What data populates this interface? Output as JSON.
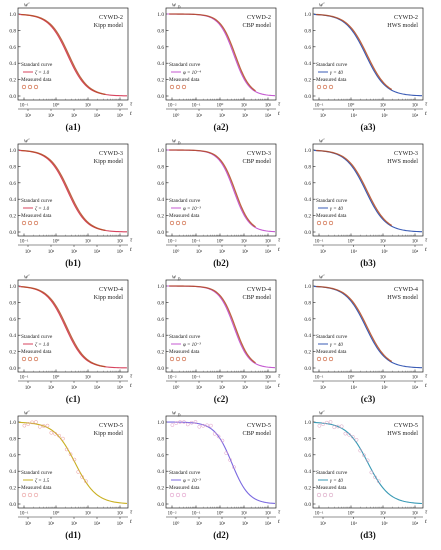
{
  "figure": {
    "panels": [
      {
        "id": "a1",
        "label": "(a1)",
        "title": "CYWD-2",
        "model": "Kipp model",
        "y_sym": "w'",
        "y_sub": "",
        "x_top": "τ",
        "x_bottom": "t",
        "ticks_top": [
          "10⁻¹",
          "10⁰",
          "10¹",
          "10²"
        ],
        "ticks_bottom": [
          "10¹",
          "10²",
          "10³",
          "10⁴",
          "10⁵"
        ],
        "legend": {
          "curve": "Standard curve",
          "param": "ζ = 1.0",
          "measured": "Measured data"
        },
        "curve_color": "#d7435e",
        "data_color": "#b34a22",
        "midpoint": 0.45,
        "slope": 1.9,
        "offset": 0.0,
        "tailMax": 0.8
      },
      {
        "id": "a2",
        "label": "(a2)",
        "title": "CYWD-2",
        "model": "CBP model",
        "y_sym": "w",
        "y_sub": "D",
        "x_top": "τ",
        "x_bottom": "t",
        "ticks_top": [
          "10⁻²",
          "10⁻¹",
          "10⁰",
          "10¹",
          "10²"
        ],
        "ticks_bottom": [
          "10⁰",
          "10¹",
          "10²",
          "10³",
          "10⁴"
        ],
        "legend": {
          "curve": "Standard curve",
          "param": "φ = 10⁻⁴",
          "measured": "Measured data"
        },
        "curve_color": "#c45ad0",
        "data_color": "#b34a22",
        "midpoint": 0.62,
        "slope": 2.4,
        "offset": 0.0,
        "tailMax": 0.82
      },
      {
        "id": "a3",
        "label": "(a3)",
        "title": "CYWD-2",
        "model": "HWS model",
        "y_sym": "w'",
        "y_sub": "",
        "x_top": "τ",
        "x_bottom": "t",
        "ticks_top": [
          "10⁻¹",
          "10⁰",
          "10¹",
          "10²"
        ],
        "ticks_bottom": [
          "10¹",
          "10²",
          "10³",
          "10⁴"
        ],
        "legend": {
          "curve": "Standard curve",
          "param": "γ = 40",
          "measured": "Measured data"
        },
        "curve_color": "#3a5bb5",
        "data_color": "#b34a22",
        "midpoint": 0.48,
        "slope": 1.8,
        "offset": 0.0,
        "tailMax": 0.72
      },
      {
        "id": "b1",
        "label": "(b1)",
        "title": "CYWD-3",
        "model": "Kipp model",
        "y_sym": "w'",
        "y_sub": "",
        "x_top": "τ",
        "x_bottom": "t",
        "ticks_top": [
          "10⁻¹",
          "10⁰",
          "10¹",
          "10²"
        ],
        "ticks_bottom": [
          "10¹",
          "10²",
          "10³",
          "10⁴",
          "10⁵"
        ],
        "legend": {
          "curve": "Standard curve",
          "param": "ζ = 1.0",
          "measured": "Measured data"
        },
        "curve_color": "#d7435e",
        "data_color": "#b34a22",
        "midpoint": 0.45,
        "slope": 1.9,
        "offset": 0.0,
        "tailMax": 0.8
      },
      {
        "id": "b2",
        "label": "(b2)",
        "title": "CYWD-3",
        "model": "CBP model",
        "y_sym": "w",
        "y_sub": "D",
        "x_top": "τ",
        "x_bottom": "t",
        "ticks_top": [
          "10⁻²",
          "10⁻¹",
          "10⁰",
          "10¹",
          "10²"
        ],
        "ticks_bottom": [
          "10⁰",
          "10¹",
          "10²",
          "10³",
          "10⁴"
        ],
        "legend": {
          "curve": "Standard curve",
          "param": "φ = 10⁻³",
          "measured": "Measured data"
        },
        "curve_color": "#c45ad0",
        "data_color": "#b34a22",
        "midpoint": 0.62,
        "slope": 2.4,
        "offset": 0.0,
        "tailMax": 0.82
      },
      {
        "id": "b3",
        "label": "(b3)",
        "title": "CYWD-3",
        "model": "HWS model",
        "y_sym": "w'",
        "y_sub": "",
        "x_top": "τ",
        "x_bottom": "t",
        "ticks_top": [
          "10⁻¹",
          "10⁰",
          "10¹",
          "10²"
        ],
        "ticks_bottom": [
          "10¹",
          "10²",
          "10³",
          "10⁴"
        ],
        "legend": {
          "curve": "Standard curve",
          "param": "γ = 40",
          "measured": "Measured data"
        },
        "curve_color": "#3a5bb5",
        "data_color": "#b34a22",
        "midpoint": 0.48,
        "slope": 1.8,
        "offset": 0.0,
        "tailMax": 0.72
      },
      {
        "id": "c1",
        "label": "(c1)",
        "title": "CYWD-4",
        "model": "Kipp model",
        "y_sym": "w'",
        "y_sub": "",
        "x_top": "τ",
        "x_bottom": "t",
        "ticks_top": [
          "10⁻¹",
          "10⁰",
          "10¹",
          "10²"
        ],
        "ticks_bottom": [
          "10¹",
          "10²",
          "10³",
          "10⁴",
          "10⁵"
        ],
        "legend": {
          "curve": "Standard curve",
          "param": "ζ = 1.0",
          "measured": "Measured data"
        },
        "curve_color": "#d7435e",
        "data_color": "#b34a22",
        "midpoint": 0.43,
        "slope": 1.9,
        "offset": 0.0,
        "tailMax": 0.8
      },
      {
        "id": "c2",
        "label": "(c2)",
        "title": "CYWD-4",
        "model": "CBP model",
        "y_sym": "w",
        "y_sub": "D",
        "x_top": "τ",
        "x_bottom": "t",
        "ticks_top": [
          "10⁻²",
          "10⁻¹",
          "10⁰",
          "10¹",
          "10²"
        ],
        "ticks_bottom": [
          "10⁰",
          "10¹",
          "10²",
          "10³",
          "10⁴"
        ],
        "legend": {
          "curve": "Standard curve",
          "param": "φ = 10⁻³",
          "measured": "Measured data"
        },
        "curve_color": "#c45ad0",
        "data_color": "#b34a22",
        "midpoint": 0.62,
        "slope": 2.4,
        "offset": 0.0,
        "tailMax": 0.82
      },
      {
        "id": "c3",
        "label": "(c3)",
        "title": "CYWD-4",
        "model": "HWS model",
        "y_sym": "w'",
        "y_sub": "",
        "x_top": "τ",
        "x_bottom": "t",
        "ticks_top": [
          "10⁻¹",
          "10⁰",
          "10¹",
          "10²"
        ],
        "ticks_bottom": [
          "10¹",
          "10²",
          "10³",
          "10⁴"
        ],
        "legend": {
          "curve": "Standard curve",
          "param": "γ = 40",
          "measured": "Measured data"
        },
        "curve_color": "#3a5bb5",
        "data_color": "#b34a22",
        "midpoint": 0.48,
        "slope": 1.8,
        "offset": 0.0,
        "tailMax": 0.72
      },
      {
        "id": "d1",
        "label": "(d1)",
        "title": "CYWD-5",
        "model": "Kipp model",
        "y_sym": "w'",
        "y_sub": "",
        "x_top": "τ",
        "x_bottom": "t",
        "ticks_top": [
          "10⁻¹",
          "10⁰",
          "10¹",
          "10²"
        ],
        "ticks_bottom": [
          "10¹",
          "10²",
          "10³",
          "10⁴",
          "10⁵"
        ],
        "legend": {
          "curve": "Standard curve",
          "param": "ζ = 1.5",
          "measured": "Measured data"
        },
        "curve_color": "#c9b022",
        "data_color": "#e89a9a",
        "midpoint": 0.52,
        "slope": 1.7,
        "offset": 0.0,
        "tailMax": 0.62,
        "scatter": true
      },
      {
        "id": "d2",
        "label": "(d2)",
        "title": "CYWD-5",
        "model": "CBP model",
        "y_sym": "w",
        "y_sub": "D",
        "x_top": "τ",
        "x_bottom": "t",
        "ticks_top": [
          "10⁻²",
          "10⁻¹",
          "10⁰",
          "10¹",
          "10²"
        ],
        "ticks_bottom": [
          "10⁰",
          "10¹",
          "10²",
          "10³",
          "10⁴"
        ],
        "legend": {
          "curve": "Standard curve",
          "param": "φ = 10⁻³",
          "measured": "Measured data"
        },
        "curve_color": "#7b6ae0",
        "data_color": "#e09ac8",
        "midpoint": 0.6,
        "slope": 2.1,
        "offset": 0.0,
        "tailMax": 0.62,
        "scatter": true
      },
      {
        "id": "d3",
        "label": "(d3)",
        "title": "CYWD-5",
        "model": "HWS model",
        "y_sym": "w'",
        "y_sub": "",
        "x_top": "τ",
        "x_bottom": "t",
        "ticks_top": [
          "10⁻¹",
          "10⁰",
          "10¹",
          "10²"
        ],
        "ticks_bottom": [
          "10¹",
          "10²",
          "10³",
          "10⁴"
        ],
        "legend": {
          "curve": "Standard curve",
          "param": "γ = 40",
          "measured": "Measured data"
        },
        "curve_color": "#3a9ab5",
        "data_color": "#d8a0c0",
        "midpoint": 0.5,
        "slope": 1.7,
        "offset": 0.0,
        "tailMax": 0.6,
        "scatter": true
      }
    ],
    "y_ticks": [
      "0.0",
      "0.2",
      "0.4",
      "0.6",
      "0.8",
      "1.0"
    ]
  },
  "chart_data": [
    {
      "type": "line",
      "panel": "a1",
      "title": "CYWD-2 Kipp model",
      "series": [
        {
          "name": "Standard curve"
        },
        {
          "name": "Measured data"
        }
      ],
      "ylim": [
        0,
        1.05
      ]
    },
    {
      "type": "line",
      "panel": "a2",
      "title": "CYWD-2 CBP model",
      "series": [
        {
          "name": "Standard curve"
        },
        {
          "name": "Measured data"
        }
      ],
      "ylim": [
        0,
        1.05
      ]
    },
    {
      "type": "line",
      "panel": "a3",
      "title": "CYWD-2 HWS model",
      "series": [
        {
          "name": "Standard curve"
        },
        {
          "name": "Measured data"
        }
      ],
      "ylim": [
        0,
        1.05
      ]
    },
    {
      "type": "line",
      "panel": "b1",
      "title": "CYWD-3 Kipp model",
      "series": [
        {
          "name": "Standard curve"
        },
        {
          "name": "Measured data"
        }
      ],
      "ylim": [
        0,
        1.05
      ]
    },
    {
      "type": "line",
      "panel": "b2",
      "title": "CYWD-3 CBP model",
      "series": [
        {
          "name": "Standard curve"
        },
        {
          "name": "Measured data"
        }
      ],
      "ylim": [
        0,
        1.05
      ]
    },
    {
      "type": "line",
      "panel": "b3",
      "title": "CYWD-3 HWS model",
      "series": [
        {
          "name": "Standard curve"
        },
        {
          "name": "Measured data"
        }
      ],
      "ylim": [
        0,
        1.05
      ]
    },
    {
      "type": "line",
      "panel": "c1",
      "title": "CYWD-4 Kipp model",
      "series": [
        {
          "name": "Standard curve"
        },
        {
          "name": "Measured data"
        }
      ],
      "ylim": [
        0,
        1.05
      ]
    },
    {
      "type": "line",
      "panel": "c2",
      "title": "CYWD-4 CBP model",
      "series": [
        {
          "name": "Standard curve"
        },
        {
          "name": "Measured data"
        }
      ],
      "ylim": [
        0,
        1.05
      ]
    },
    {
      "type": "line",
      "panel": "c3",
      "title": "CYWD-4 HWS model",
      "series": [
        {
          "name": "Standard curve"
        },
        {
          "name": "Measured data"
        }
      ],
      "ylim": [
        0,
        1.05
      ]
    },
    {
      "type": "line",
      "panel": "d1",
      "title": "CYWD-5 Kipp model",
      "series": [
        {
          "name": "Standard curve"
        },
        {
          "name": "Measured data"
        }
      ],
      "ylim": [
        0,
        1.05
      ]
    },
    {
      "type": "line",
      "panel": "d2",
      "title": "CYWD-5 CBP model",
      "series": [
        {
          "name": "Standard curve"
        },
        {
          "name": "Measured data"
        }
      ],
      "ylim": [
        0,
        1.05
      ]
    },
    {
      "type": "line",
      "panel": "d3",
      "title": "CYWD-5 HWS model",
      "series": [
        {
          "name": "Standard curve"
        },
        {
          "name": "Measured data"
        }
      ],
      "ylim": [
        0,
        1.05
      ]
    }
  ]
}
